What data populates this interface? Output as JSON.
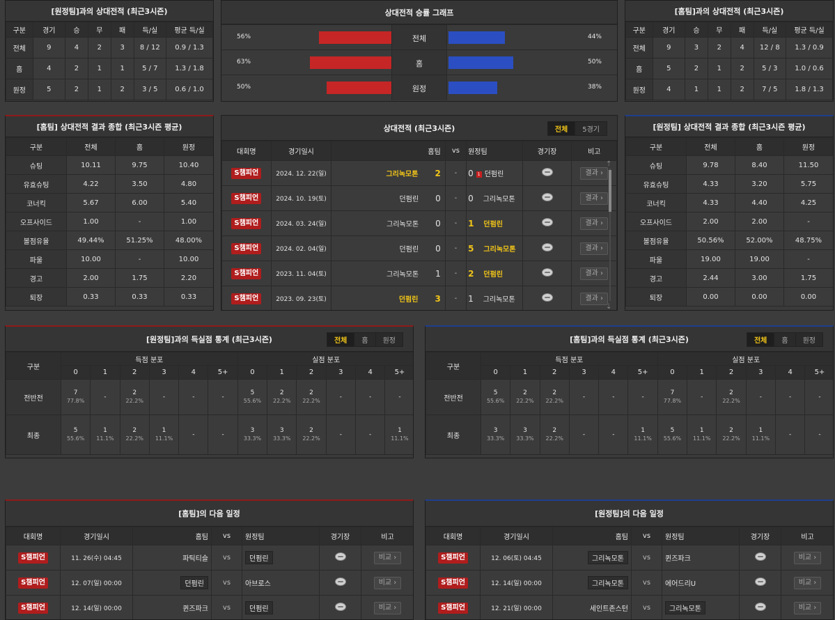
{
  "away_h2h": {
    "title": "[원정팀]과의 상대전적 (최근3시즌)",
    "headers": [
      "구분",
      "경기",
      "승",
      "무",
      "패",
      "득/실",
      "평균 득/실"
    ],
    "rows": [
      [
        "전체",
        "9",
        "4",
        "2",
        "3",
        "8 / 12",
        "0.9 / 1.3"
      ],
      [
        "홈",
        "4",
        "2",
        "1",
        "1",
        "5 / 7",
        "1.3 / 1.8"
      ],
      [
        "원정",
        "5",
        "2",
        "1",
        "2",
        "3 / 5",
        "0.6 / 1.0"
      ]
    ]
  },
  "graph": {
    "title": "상대전적 승률 그래프",
    "rows": [
      {
        "left_pct": "56%",
        "label": "전체",
        "right_pct": "44%",
        "left_val": 56,
        "right_val": 44
      },
      {
        "left_pct": "63%",
        "label": "홈",
        "right_pct": "50%",
        "left_val": 63,
        "right_val": 50
      },
      {
        "left_pct": "50%",
        "label": "원정",
        "right_pct": "38%",
        "left_val": 50,
        "right_val": 38
      }
    ],
    "left_color": "#c62626",
    "right_color": "#2b4fc2"
  },
  "home_h2h": {
    "title": "[홈팀]과의 상대전적 (최근3시즌)",
    "headers": [
      "구분",
      "경기",
      "승",
      "무",
      "패",
      "득/실",
      "평균 득/실"
    ],
    "rows": [
      [
        "전체",
        "9",
        "3",
        "2",
        "4",
        "12 / 8",
        "1.3 / 0.9"
      ],
      [
        "홈",
        "5",
        "2",
        "1",
        "2",
        "5 / 3",
        "1.0 / 0.6"
      ],
      [
        "원정",
        "4",
        "1",
        "1",
        "2",
        "7 / 5",
        "1.8 / 1.3"
      ]
    ]
  },
  "home_summary": {
    "title": "[홈팀] 상대전적 결과 종합 (최근3시즌 평균)",
    "headers": [
      "구분",
      "전체",
      "홈",
      "원정"
    ],
    "rows": [
      [
        "슈팅",
        "10.11",
        "9.75",
        "10.40"
      ],
      [
        "유효슈팅",
        "4.22",
        "3.50",
        "4.80"
      ],
      [
        "코너킥",
        "5.67",
        "6.00",
        "5.40"
      ],
      [
        "오프사이드",
        "1.00",
        "-",
        "1.00"
      ],
      [
        "볼점유율",
        "49.44%",
        "51.25%",
        "48.00%"
      ],
      [
        "파울",
        "10.00",
        "-",
        "10.00"
      ],
      [
        "경고",
        "2.00",
        "1.75",
        "2.20"
      ],
      [
        "퇴장",
        "0.33",
        "0.33",
        "0.33"
      ]
    ]
  },
  "matches": {
    "title": "상대전적 (최근3시즌)",
    "tabs": [
      "전체",
      "5경기"
    ],
    "headers": {
      "league": "대회명",
      "date": "경기일시",
      "home": "홈팀",
      "vs": "vs",
      "away": "원정팀",
      "stadium": "경기장",
      "note": "비고"
    },
    "result_label": "결과 ›",
    "rows": [
      {
        "league": "S챔피언",
        "date": "2024. 12. 22(일)",
        "home": "그리녹모톤",
        "hs": "2",
        "as": "0",
        "away": "던펌린",
        "winner": "home",
        "red_card": "1"
      },
      {
        "league": "S챔피언",
        "date": "2024. 10. 19(토)",
        "home": "던펌린",
        "hs": "0",
        "as": "0",
        "away": "그리녹모톤",
        "winner": "none"
      },
      {
        "league": "S챔피언",
        "date": "2024. 03. 24(일)",
        "home": "그리녹모톤",
        "hs": "0",
        "as": "1",
        "away": "던펌린",
        "winner": "away"
      },
      {
        "league": "S챔피언",
        "date": "2024. 02. 04(일)",
        "home": "던펌린",
        "hs": "0",
        "as": "5",
        "away": "그리녹모톤",
        "winner": "away"
      },
      {
        "league": "S챔피언",
        "date": "2023. 11. 04(토)",
        "home": "그리녹모톤",
        "hs": "1",
        "as": "2",
        "away": "던펌린",
        "winner": "away"
      },
      {
        "league": "S챔피언",
        "date": "2023. 09. 23(토)",
        "home": "던펌린",
        "hs": "3",
        "as": "1",
        "away": "그리녹모톤",
        "winner": "home"
      }
    ]
  },
  "away_summary": {
    "title": "[원정팀] 상대전적 결과 종합 (최근3시즌 평균)",
    "headers": [
      "구분",
      "전체",
      "홈",
      "원정"
    ],
    "rows": [
      [
        "슈팅",
        "9.78",
        "8.40",
        "11.50"
      ],
      [
        "유효슈팅",
        "4.33",
        "3.20",
        "5.75"
      ],
      [
        "코너킥",
        "4.33",
        "4.40",
        "4.25"
      ],
      [
        "오프사이드",
        "2.00",
        "2.00",
        "-"
      ],
      [
        "볼점유율",
        "50.56%",
        "52.00%",
        "48.75%"
      ],
      [
        "파울",
        "19.00",
        "19.00",
        "-"
      ],
      [
        "경고",
        "2.44",
        "3.00",
        "1.75"
      ],
      [
        "퇴장",
        "0.00",
        "0.00",
        "0.00"
      ]
    ]
  },
  "goal_stats_left": {
    "title": "[원정팀]과의 득실점 통계 (최근3시즌)",
    "tabs": [
      "전체",
      "홈",
      "원정"
    ],
    "col_label": "구분",
    "scored_label": "득점 분포",
    "conceded_label": "실점 분포",
    "buckets": [
      "0",
      "1",
      "2",
      "3",
      "4",
      "5+"
    ],
    "rows": [
      {
        "label": "전반전",
        "scored": [
          [
            "7",
            "77.8%"
          ],
          [
            "-",
            ""
          ],
          [
            "2",
            "22.2%"
          ],
          [
            "-",
            ""
          ],
          [
            "-",
            ""
          ],
          [
            "-",
            ""
          ]
        ],
        "conceded": [
          [
            "5",
            "55.6%"
          ],
          [
            "2",
            "22.2%"
          ],
          [
            "2",
            "22.2%"
          ],
          [
            "-",
            ""
          ],
          [
            "-",
            ""
          ],
          [
            "-",
            ""
          ]
        ]
      },
      {
        "label": "최종",
        "scored": [
          [
            "5",
            "55.6%"
          ],
          [
            "1",
            "11.1%"
          ],
          [
            "2",
            "22.2%"
          ],
          [
            "1",
            "11.1%"
          ],
          [
            "-",
            ""
          ],
          [
            "-",
            ""
          ]
        ],
        "conceded": [
          [
            "3",
            "33.3%"
          ],
          [
            "3",
            "33.3%"
          ],
          [
            "2",
            "22.2%"
          ],
          [
            "-",
            ""
          ],
          [
            "-",
            ""
          ],
          [
            "1",
            "11.1%"
          ]
        ]
      }
    ]
  },
  "goal_stats_right": {
    "title": "[홈팀]과의 득실점 통계 (최근3시즌)",
    "tabs": [
      "전체",
      "홈",
      "원정"
    ],
    "col_label": "구분",
    "scored_label": "득점 분포",
    "conceded_label": "실점 분포",
    "buckets": [
      "0",
      "1",
      "2",
      "3",
      "4",
      "5+"
    ],
    "rows": [
      {
        "label": "전반전",
        "scored": [
          [
            "5",
            "55.6%"
          ],
          [
            "2",
            "22.2%"
          ],
          [
            "2",
            "22.2%"
          ],
          [
            "-",
            ""
          ],
          [
            "-",
            ""
          ],
          [
            "-",
            ""
          ]
        ],
        "conceded": [
          [
            "7",
            "77.8%"
          ],
          [
            "-",
            ""
          ],
          [
            "2",
            "22.2%"
          ],
          [
            "-",
            ""
          ],
          [
            "-",
            ""
          ],
          [
            "-",
            ""
          ]
        ]
      },
      {
        "label": "최종",
        "scored": [
          [
            "3",
            "33.3%"
          ],
          [
            "3",
            "33.3%"
          ],
          [
            "2",
            "22.2%"
          ],
          [
            "-",
            ""
          ],
          [
            "-",
            ""
          ],
          [
            "1",
            "11.1%"
          ]
        ],
        "conceded": [
          [
            "5",
            "55.6%"
          ],
          [
            "1",
            "11.1%"
          ],
          [
            "2",
            "22.2%"
          ],
          [
            "1",
            "11.1%"
          ],
          [
            "-",
            ""
          ],
          [
            "-",
            ""
          ]
        ]
      }
    ]
  },
  "home_next": {
    "title": "[홈팀]의 다음 일정",
    "headers": {
      "league": "대회명",
      "date": "경기일시",
      "home": "홈팀",
      "vs": "vs",
      "away": "원정팀",
      "stadium": "경기장",
      "note": "비고"
    },
    "compare_label": "비교 ›",
    "rows": [
      {
        "league": "S챔피언",
        "date": "11. 26(수) 04:45",
        "home": "파틱티슬",
        "away": "던펌린",
        "boxed": "away"
      },
      {
        "league": "S챔피언",
        "date": "12. 07(일) 00:00",
        "home": "던펌린",
        "away": "아브로스",
        "boxed": "home"
      },
      {
        "league": "S챔피언",
        "date": "12. 14(일) 00:00",
        "home": "퀸즈파크",
        "away": "던펌린",
        "boxed": "away"
      }
    ]
  },
  "away_next": {
    "title": "[원정팀]의 다음 일정",
    "headers": {
      "league": "대회명",
      "date": "경기일시",
      "home": "홈팀",
      "vs": "vs",
      "away": "원정팀",
      "stadium": "경기장",
      "note": "비고"
    },
    "compare_label": "비교 ›",
    "rows": [
      {
        "league": "S챔피언",
        "date": "12. 06(토) 04:45",
        "home": "그리녹모톤",
        "away": "퀸즈파크",
        "boxed": "home"
      },
      {
        "league": "S챔피언",
        "date": "12. 14(일) 00:00",
        "home": "그리녹모톤",
        "away": "에어드리U",
        "boxed": "home"
      },
      {
        "league": "S챔피언",
        "date": "12. 21(일) 00:00",
        "home": "세인트존스턴",
        "away": "그리녹모톤",
        "boxed": "away"
      }
    ]
  }
}
